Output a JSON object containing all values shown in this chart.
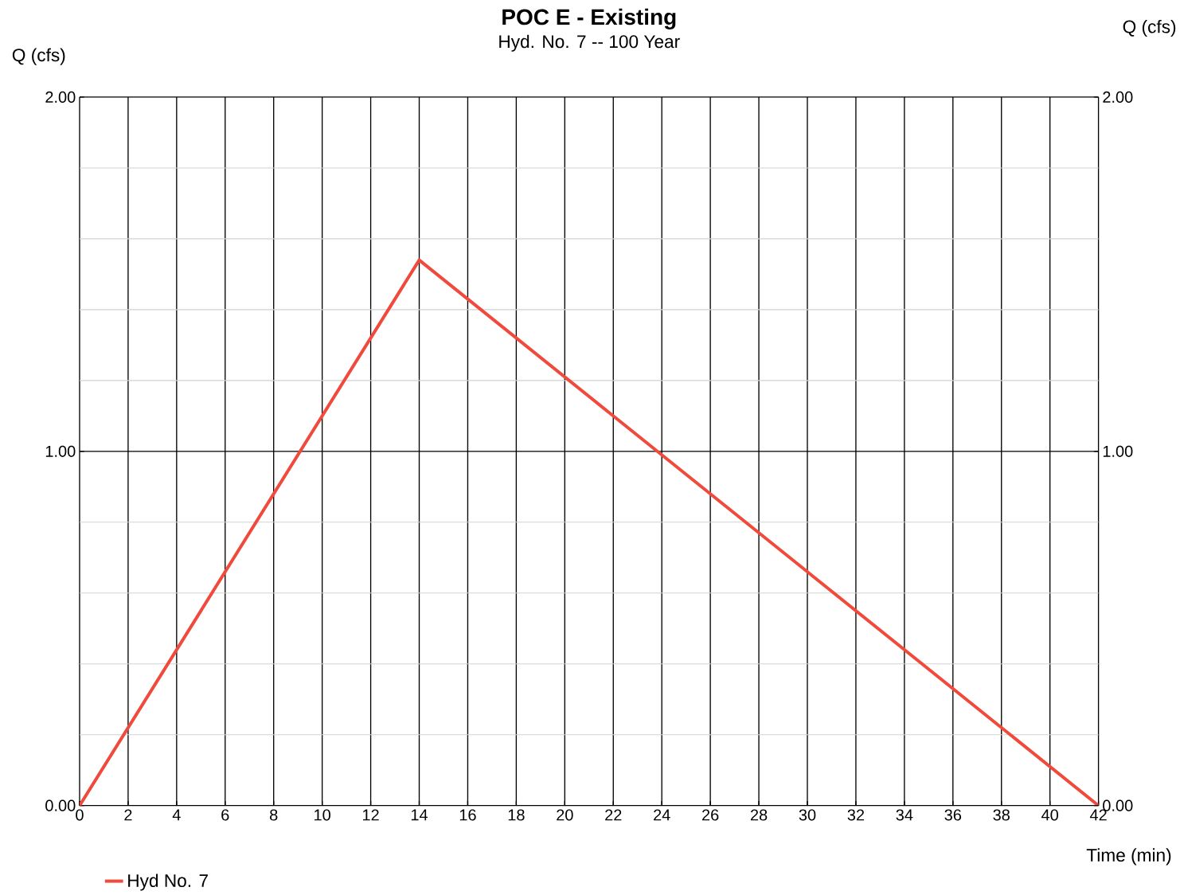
{
  "chart_data": {
    "type": "line",
    "title": "POC E - Existing",
    "subtitle": "Hyd. No. 7 -- 100 Year",
    "xlabel": "Time (min)",
    "ylabel": "Q (cfs)",
    "y2label": "Q (cfs)",
    "x": [
      0,
      14,
      42
    ],
    "series": [
      {
        "name": "Hyd No. 7",
        "color": "#f04a3c",
        "values": [
          0,
          1.54,
          0
        ]
      }
    ],
    "xlim": [
      0,
      42
    ],
    "xticks": [
      0,
      2,
      4,
      6,
      8,
      10,
      12,
      14,
      16,
      18,
      20,
      22,
      24,
      26,
      28,
      30,
      32,
      34,
      36,
      38,
      40,
      42
    ],
    "ylim": [
      0,
      2
    ],
    "yticks": [
      {
        "value": 0,
        "label": "0.00"
      },
      {
        "value": 1,
        "label": "1.00"
      },
      {
        "value": 2,
        "label": "2.00"
      }
    ],
    "y2lim": [
      0,
      2
    ],
    "y2ticks": [
      {
        "value": 0,
        "label": "0.00"
      },
      {
        "value": 1,
        "label": "1.00"
      },
      {
        "value": 2,
        "label": "2.00"
      }
    ],
    "grid": true,
    "legend": "bottom left"
  }
}
